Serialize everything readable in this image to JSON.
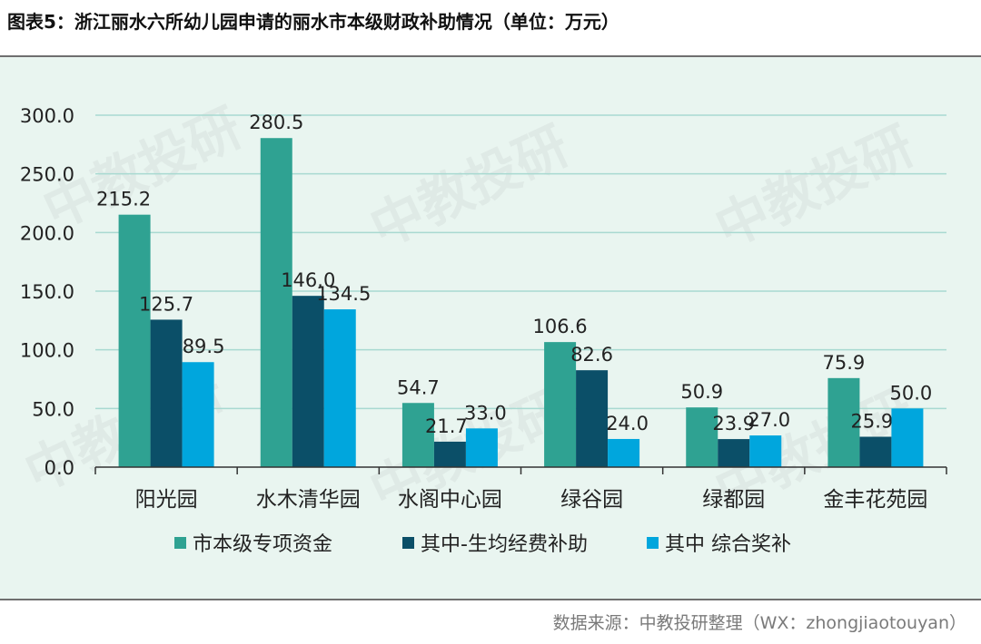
{
  "title": "图表5：浙江丽水六所幼儿园申请的丽水市本级财政补助情况（单位：万元）",
  "source": "数据来源：中教投研整理（WX：zhongjiaotouyan）",
  "watermark": "中教投研",
  "colors": {
    "series1": "#2fa292",
    "series2": "#0b4f68",
    "series3": "#00a6dd",
    "grid": "#a8d9d1",
    "axis": "#333333",
    "background": "#e9f5f0"
  },
  "chart_data": {
    "type": "bar",
    "title": "",
    "xlabel": "",
    "ylabel": "",
    "ylim": [
      0,
      300
    ],
    "yticks": [
      "0.0",
      "50.0",
      "100.0",
      "150.0",
      "200.0",
      "250.0",
      "300.0"
    ],
    "grid": true,
    "legend_position": "bottom",
    "categories": [
      "阳光园",
      "水木清华园",
      "水阁中心园",
      "绿谷园",
      "绿都园",
      "金丰花苑园"
    ],
    "series": [
      {
        "name": "市本级专项资金",
        "values": [
          215.2,
          280.5,
          54.7,
          106.6,
          50.9,
          75.9
        ],
        "labels": [
          "215.2",
          "280.5",
          "54.7",
          "106.6",
          "50.9",
          "75.9"
        ]
      },
      {
        "name": "其中-生均经费补助",
        "values": [
          125.7,
          146.0,
          21.7,
          82.6,
          23.9,
          25.9
        ],
        "labels": [
          "125.7",
          "146.0",
          "21.7",
          "82.6",
          "23.9",
          "25.9"
        ]
      },
      {
        "name": "其中 综合奖补",
        "values": [
          89.5,
          134.5,
          33.0,
          24.0,
          27.0,
          50.0
        ],
        "labels": [
          "89.5",
          "134.5",
          "33.0",
          "24.0",
          "27.0",
          "50.0"
        ]
      }
    ]
  }
}
